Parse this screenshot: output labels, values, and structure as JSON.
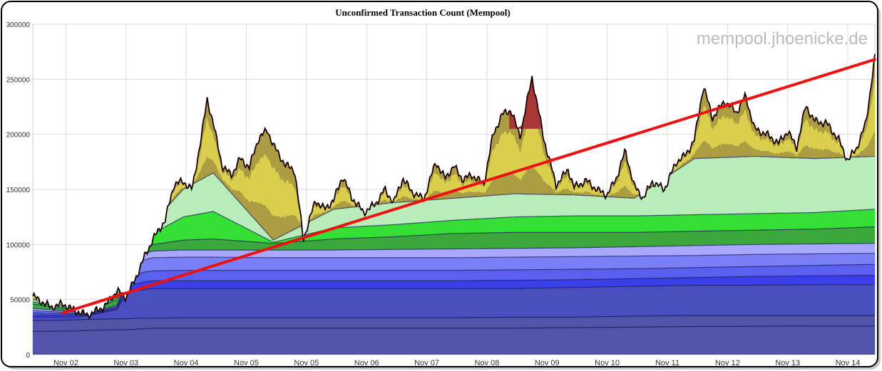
{
  "chart_data": {
    "type": "area",
    "title": "Unconfirmed Transaction Count (Mempool)",
    "watermark": "mempool.jhoenicke.de",
    "xlabel": "",
    "ylabel": "",
    "x_ticks": [
      "Nov 02",
      "Nov 03",
      "Nov 04",
      "Nov 05",
      "Nov 05",
      "Nov 06",
      "Nov 07",
      "Nov 08",
      "Nov 09",
      "Nov 10",
      "Nov 11",
      "Nov 12",
      "Nov 13",
      "Nov 14"
    ],
    "y_ticks": [
      "0",
      "50000",
      "100000",
      "150000",
      "200000",
      "250000",
      "300000"
    ],
    "ylim": [
      0,
      300000
    ],
    "xlim": [
      0,
      14
    ],
    "grid": true,
    "colors": {
      "base_fill": "#5254a8",
      "blue_band": "#3a3fe8",
      "light_blue": "#a8a8ff",
      "green_dark": "#3aa83a",
      "green": "#33e033",
      "light_green": "#b8ecb8",
      "olive": "#a89838",
      "yellow": "#e8e050",
      "dark_red": "#a83838",
      "outline": "#1a0000",
      "trend_line": "#ee1111",
      "grid": "#dddddd"
    },
    "total": {
      "x": [
        0,
        0.3,
        0.5,
        0.7,
        0.9,
        1.0,
        1.2,
        1.4,
        1.55,
        1.7,
        1.85,
        2.0,
        2.2,
        2.35,
        2.5,
        2.65,
        2.8,
        2.9,
        3.0,
        3.15,
        3.3,
        3.45,
        3.6,
        3.75,
        3.9,
        4.0,
        4.2,
        4.35,
        4.5,
        4.7,
        4.85,
        5.0,
        5.15,
        5.3,
        5.5,
        5.7,
        5.85,
        6.0,
        6.15,
        6.3,
        6.5,
        6.7,
        6.85,
        7.0,
        7.15,
        7.3,
        7.5,
        7.65,
        7.8,
        7.95,
        8.1,
        8.3,
        8.5,
        8.7,
        8.9,
        9.0,
        9.2,
        9.4,
        9.55,
        9.7,
        9.85,
        10.0,
        10.15,
        10.3,
        10.5,
        10.7,
        10.85,
        11.0,
        11.15,
        11.3,
        11.5,
        11.7,
        11.85,
        12.0,
        12.2,
        12.4,
        12.55,
        12.7,
        12.85,
        13.0,
        13.2,
        13.4,
        13.55,
        13.7,
        13.85,
        14.0
      ],
      "y": [
        53000,
        43000,
        46000,
        40000,
        36000,
        38000,
        44000,
        58000,
        52000,
        68000,
        88000,
        105000,
        122000,
        155000,
        157000,
        150000,
        197000,
        232000,
        210000,
        171000,
        163000,
        178000,
        170000,
        196000,
        204000,
        190000,
        172000,
        168000,
        105000,
        140000,
        132000,
        140000,
        162000,
        143000,
        129000,
        137000,
        150000,
        138000,
        160000,
        148000,
        141000,
        175000,
        160000,
        171000,
        159000,
        163000,
        155000,
        199000,
        218000,
        222000,
        198000,
        252000,
        195000,
        154000,
        168000,
        152000,
        158000,
        149000,
        145000,
        160000,
        185000,
        153000,
        142000,
        157000,
        150000,
        175000,
        181000,
        195000,
        244000,
        215000,
        230000,
        220000,
        235000,
        205000,
        200000,
        192000,
        203000,
        188000,
        226000,
        212000,
        210000,
        195000,
        176000,
        188000,
        210000,
        270000
      ]
    },
    "series": [
      {
        "name": "",
        "x": [
          0,
          0.7,
          0.9,
          1.4,
          1.55,
          1.7,
          1.85,
          2.0,
          2.5,
          3.0,
          4.0,
          5.0,
          6.0,
          7.0,
          8.0,
          9.0,
          10.0,
          11.0,
          12.0,
          13.0,
          14.0
        ],
        "y": [
          21000,
          21500,
          22000,
          22500,
          22500,
          23000,
          23500,
          24000,
          24000,
          24000,
          24000,
          24000,
          24000,
          24000,
          24000,
          24500,
          25000,
          25500,
          25800,
          26000,
          26000
        ]
      },
      {
        "name": "",
        "x": [
          0,
          0.7,
          0.9,
          1.4,
          1.55,
          1.7,
          1.85,
          2.0,
          2.5,
          3.0,
          4.0,
          5.0,
          6.0,
          7.0,
          8.0,
          9.0,
          10.0,
          11.0,
          12.0,
          13.0,
          14.0
        ],
        "y": [
          31000,
          31500,
          32000,
          32500,
          32500,
          33000,
          33000,
          33000,
          33500,
          33500,
          33500,
          33500,
          33500,
          33500,
          34000,
          34000,
          35000,
          35500,
          35500,
          35500,
          35500
        ]
      },
      {
        "name": "",
        "x": [
          0,
          0.7,
          0.9,
          1.4,
          1.55,
          1.7,
          1.85,
          2.0,
          2.5,
          3.0,
          4.0,
          5.0,
          6.0,
          7.0,
          8.0,
          9.0,
          10.0,
          11.0,
          12.0,
          13.0,
          14.0
        ],
        "y": [
          34000,
          34000,
          35000,
          41000,
          55000,
          58000,
          59000,
          60000,
          60000,
          60000,
          60000,
          60000,
          60000,
          60000,
          60000,
          61000,
          62000,
          63000,
          63000,
          63500,
          63500
        ]
      },
      {
        "name": "",
        "x": [
          0,
          0.7,
          0.9,
          1.4,
          1.55,
          1.7,
          1.85,
          2.0,
          2.5,
          3.0,
          4.0,
          5.0,
          6.0,
          7.0,
          8.0,
          9.0,
          10.0,
          11.0,
          12.0,
          13.0,
          14.0
        ],
        "y": [
          36000,
          36000,
          36000,
          42000,
          59000,
          64000,
          66000,
          67000,
          67000,
          67000,
          67000,
          67000,
          67000,
          67000,
          67500,
          68000,
          69000,
          70000,
          71000,
          71500,
          72000
        ]
      },
      {
        "name": "",
        "x": [
          0,
          0.7,
          0.9,
          1.4,
          1.55,
          1.7,
          1.85,
          2.0,
          2.5,
          3.0,
          4.0,
          5.0,
          6.0,
          7.0,
          8.0,
          9.0,
          10.0,
          11.0,
          12.0,
          13.0,
          14.0
        ],
        "y": [
          38000,
          37000,
          36500,
          43000,
          62000,
          72000,
          75000,
          76000,
          76500,
          76500,
          76500,
          76500,
          76500,
          76500,
          77000,
          77500,
          78000,
          79000,
          80000,
          81000,
          82000
        ]
      },
      {
        "name": "",
        "x": [
          0,
          0.7,
          0.9,
          1.4,
          1.55,
          1.7,
          1.85,
          2.0,
          2.5,
          3.0,
          4.0,
          5.0,
          6.0,
          7.0,
          8.0,
          9.0,
          10.0,
          11.0,
          12.0,
          13.0,
          14.0
        ],
        "y": [
          40000,
          38000,
          37000,
          44000,
          64000,
          80000,
          86000,
          88000,
          88500,
          88500,
          88000,
          88000,
          88000,
          88000,
          88500,
          89000,
          89500,
          90000,
          91000,
          91500,
          92000
        ]
      },
      {
        "name": "",
        "x": [
          0,
          0.7,
          0.9,
          1.4,
          1.55,
          1.7,
          1.85,
          2.0,
          2.5,
          3.0,
          4.0,
          5.0,
          6.0,
          7.0,
          8.0,
          9.0,
          10.0,
          11.0,
          12.0,
          13.0,
          14.0
        ],
        "y": [
          42000,
          39000,
          37500,
          45000,
          66000,
          85000,
          92000,
          94000,
          95000,
          95000,
          95000,
          95000,
          95500,
          96000,
          96500,
          97000,
          98000,
          99000,
          100000,
          100500,
          101000
        ]
      },
      {
        "name": "",
        "x": [
          0,
          0.7,
          0.9,
          1.4,
          1.55,
          1.7,
          1.85,
          2.0,
          2.5,
          3.0,
          4.0,
          5.0,
          6.0,
          7.0,
          8.0,
          9.0,
          10.0,
          11.0,
          12.0,
          13.0,
          14.0
        ],
        "y": [
          46000,
          40000,
          38000,
          50000,
          68000,
          88000,
          98000,
          100000,
          104000,
          105000,
          101000,
          105000,
          107000,
          110000,
          111000,
          111000,
          111000,
          112000,
          113000,
          114000,
          116000
        ]
      },
      {
        "name": "",
        "x": [
          0,
          0.7,
          0.9,
          1.4,
          1.55,
          1.7,
          1.85,
          2.0,
          2.5,
          3.0,
          4.0,
          5.0,
          6.0,
          7.0,
          8.0,
          9.0,
          10.0,
          11.0,
          12.0,
          13.0,
          14.0
        ],
        "y": [
          48000,
          41000,
          39000,
          52000,
          68000,
          88000,
          102000,
          110000,
          125000,
          130000,
          102000,
          115000,
          118000,
          122000,
          125000,
          126000,
          126000,
          127000,
          128000,
          129000,
          132000
        ]
      },
      {
        "name": "",
        "x": [
          0,
          0.7,
          0.9,
          1.4,
          1.55,
          1.7,
          1.85,
          2.0,
          2.5,
          3.0,
          4.0,
          5.0,
          6.0,
          7.0,
          8.0,
          9.0,
          10.0,
          11.0,
          12.0,
          13.0,
          14.0
        ],
        "y": [
          50000,
          42000,
          39500,
          55000,
          68000,
          88000,
          104000,
          120000,
          150000,
          165000,
          104000,
          132000,
          138000,
          142000,
          146000,
          145000,
          142000,
          178000,
          180000,
          178000,
          180000
        ]
      }
    ],
    "trend_line": {
      "x": [
        0.5,
        14.0
      ],
      "y": [
        38000,
        268000
      ]
    }
  }
}
